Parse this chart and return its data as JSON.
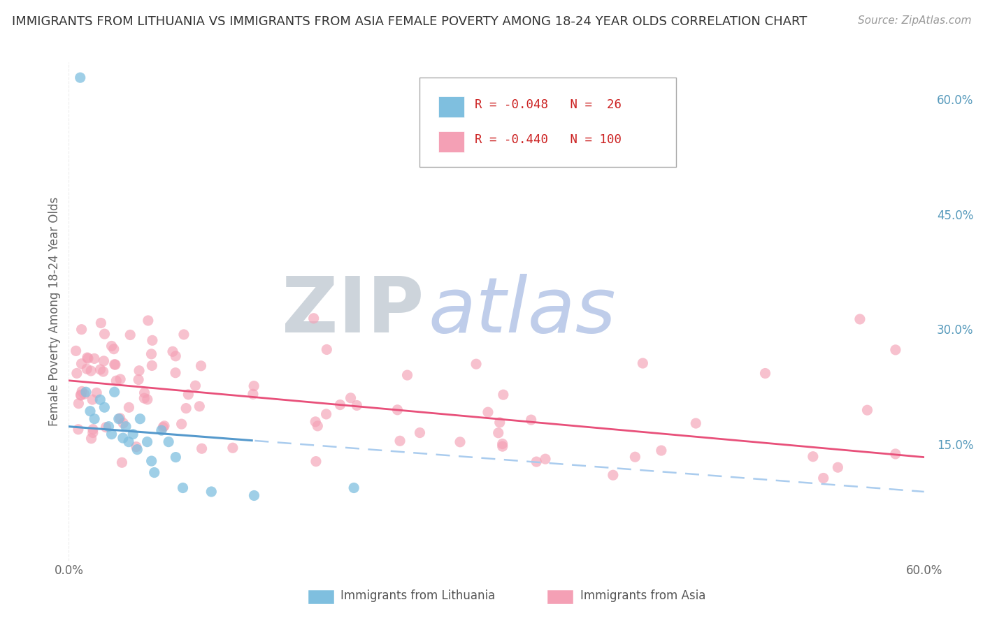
{
  "title": "IMMIGRANTS FROM LITHUANIA VS IMMIGRANTS FROM ASIA FEMALE POVERTY AMONG 18-24 YEAR OLDS CORRELATION CHART",
  "source": "Source: ZipAtlas.com",
  "ylabel": "Female Poverty Among 18-24 Year Olds",
  "xlim": [
    0.0,
    0.6
  ],
  "ylim": [
    0.0,
    0.65
  ],
  "legend_bottom": [
    "Immigrants from Lithuania",
    "Immigrants from Asia"
  ],
  "legend_R_N": {
    "lithuania": {
      "R": -0.048,
      "N": 26
    },
    "asia": {
      "R": -0.44,
      "N": 100
    }
  },
  "color_lithuania": "#7fbfdf",
  "color_asia": "#f4a0b5",
  "color_line_lithuania": "#5599cc",
  "color_line_asia": "#e8507a",
  "color_line_dashed": "#aaccee",
  "background_color": "#ffffff",
  "grid_color": "#e8e8e8",
  "watermark_color_zip": "#c8d4e0",
  "watermark_color_atlas": "#b8c8e8",
  "title_fontsize": 13,
  "source_fontsize": 11,
  "tick_fontsize": 12,
  "ylabel_fontsize": 12
}
